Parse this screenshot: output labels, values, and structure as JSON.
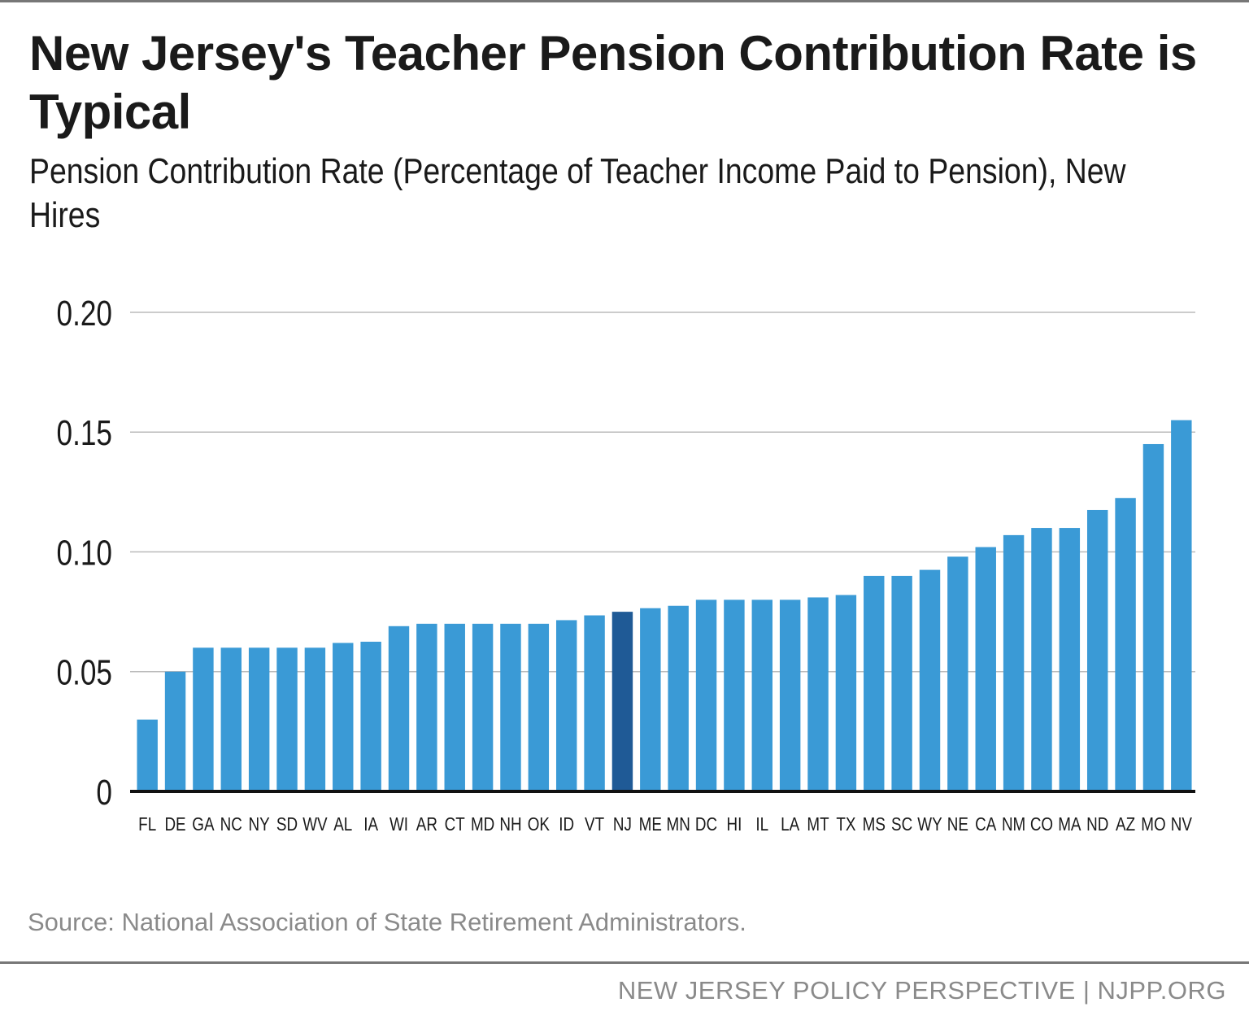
{
  "chart_data": {
    "type": "bar",
    "title": "New Jersey's Teacher Pension Contribution Rate is Typical",
    "subtitle": "Pension Contribution Rate (Percentage of Teacher Income Paid to Pension), New Hires",
    "categories": [
      "FL",
      "DE",
      "GA",
      "NC",
      "NY",
      "SD",
      "WV",
      "AL",
      "IA",
      "WI",
      "AR",
      "CT",
      "MD",
      "NH",
      "OK",
      "ID",
      "VT",
      "NJ",
      "ME",
      "MN",
      "DC",
      "HI",
      "IL",
      "LA",
      "MT",
      "TX",
      "MS",
      "SC",
      "WY",
      "NE",
      "CA",
      "NM",
      "CO",
      "MA",
      "ND",
      "AZ",
      "MO",
      "NV"
    ],
    "values": [
      0.03,
      0.05,
      0.06,
      0.06,
      0.06,
      0.06,
      0.06,
      0.062,
      0.0625,
      0.069,
      0.07,
      0.07,
      0.07,
      0.07,
      0.07,
      0.0715,
      0.0735,
      0.075,
      0.0765,
      0.0775,
      0.08,
      0.08,
      0.08,
      0.08,
      0.081,
      0.082,
      0.09,
      0.09,
      0.0925,
      0.098,
      0.102,
      0.107,
      0.11,
      0.11,
      0.1175,
      0.1225,
      0.145,
      0.155
    ],
    "highlight": "NJ",
    "yticks": [
      "0",
      "0.05",
      "0.10",
      "0.15",
      "0.20"
    ],
    "ytick_values": [
      0,
      0.05,
      0.1,
      0.15,
      0.2
    ],
    "ylim": [
      0,
      0.2
    ],
    "grid": true,
    "colors": {
      "bar": "#3a9ad6",
      "highlight": "#1f5a96",
      "grid": "#bbbbbb",
      "axis": "#111111"
    }
  },
  "source": "Source: National Association of State Retirement Administrators.",
  "footer": "NEW JERSEY POLICY PERSPECTIVE | NJPP.ORG"
}
